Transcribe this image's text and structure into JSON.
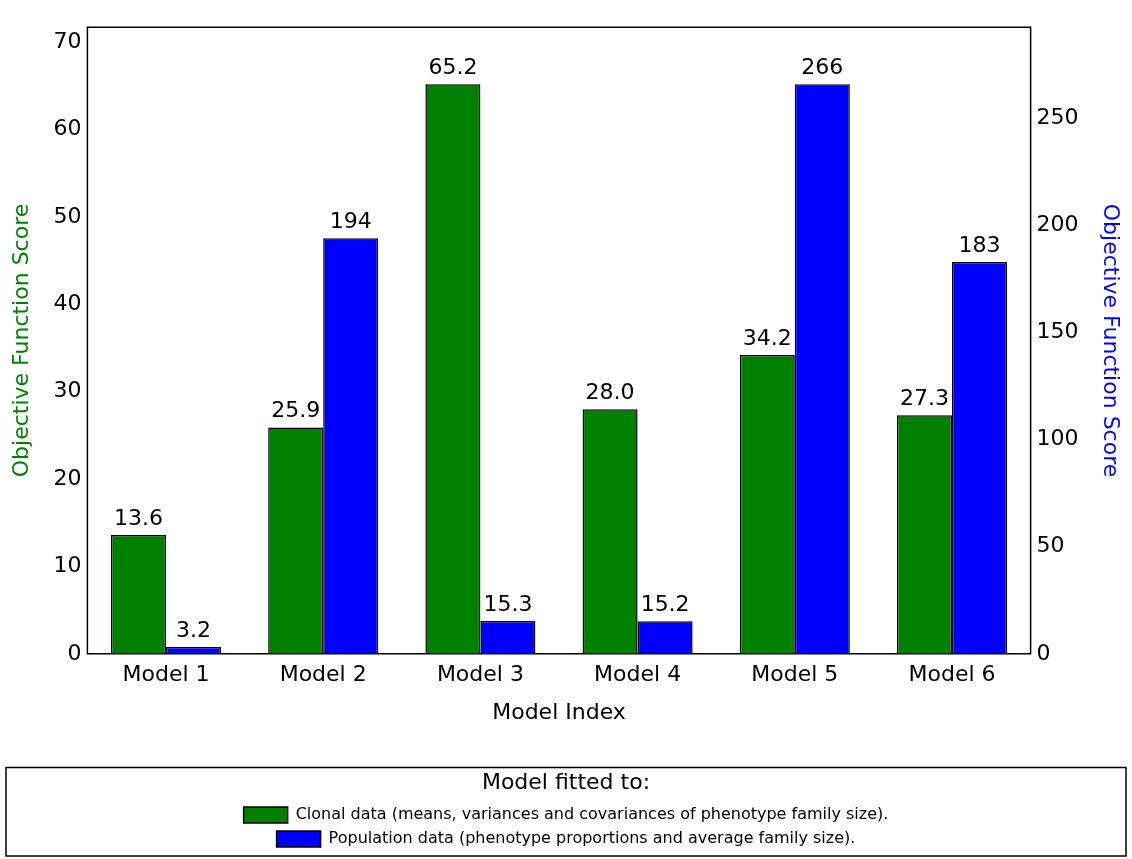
{
  "chart_data": {
    "type": "bar",
    "xlabel": "Model Index",
    "ylabel": "Objective Function Score",
    "y2label": "Objective Function Score",
    "legend_title": "Model fitted to:",
    "categories": [
      "Model 1",
      "Model 2",
      "Model 3",
      "Model 4",
      "Model 5",
      "Model 6"
    ],
    "series": [
      {
        "name": "Clonal data (means, variances and covariances of phenotype family size).",
        "color": "#008000",
        "values": [
          13.6,
          25.9,
          65.2,
          28.0,
          34.2,
          27.3
        ],
        "value_labels": [
          "13.6",
          "25.9",
          "65.2",
          "28.0",
          "34.2",
          "27.3"
        ]
      },
      {
        "name": "Population data (phenotype proportions and average family size).",
        "color": "#0000ff",
        "axis": "y2",
        "values": [
          3.2,
          194,
          15.3,
          15.2,
          266,
          183
        ],
        "value_labels": [
          "3.2",
          "194",
          "15.3",
          "15.2",
          "266",
          "183"
        ]
      }
    ],
    "ylim": [
      0,
      71.72
    ],
    "yticks": [
      0,
      10,
      20,
      30,
      40,
      50,
      60,
      70
    ],
    "y2lim": [
      0,
      292.6
    ],
    "y2ticks": [
      0,
      50,
      100,
      150,
      200,
      250
    ],
    "grid": false,
    "legend": "bottom"
  }
}
